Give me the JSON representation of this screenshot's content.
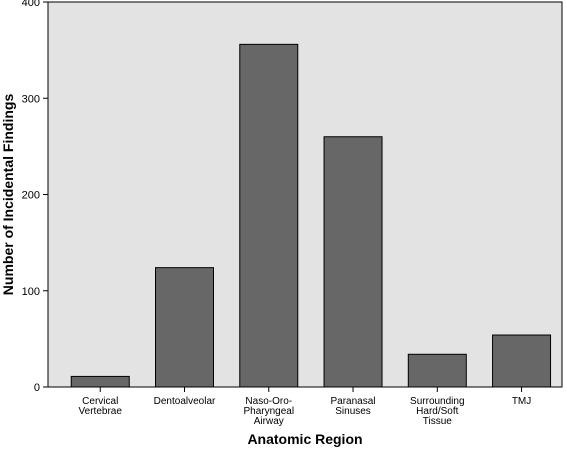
{
  "chart_data": {
    "type": "bar",
    "title": "",
    "xlabel": "Anatomic Region",
    "ylabel": "Number of Incidental Findings",
    "categories": [
      [
        "Cervical",
        "Vertebrae"
      ],
      [
        "Dentoalveolar"
      ],
      [
        "Naso-Oro-",
        "Pharyngeal",
        "Airway"
      ],
      [
        "Paranasal",
        "Sinuses"
      ],
      [
        "Surrounding",
        "Hard/Soft",
        "Tissue"
      ],
      [
        "TMJ"
      ]
    ],
    "values": [
      11,
      124,
      356,
      260,
      34,
      54
    ],
    "ylim": [
      0,
      400
    ],
    "yticks": [
      0,
      100,
      200,
      300,
      400
    ],
    "grid": false,
    "legend": "none"
  },
  "colors": {
    "plot_background": "#e3e3e3",
    "bar_fill": "#676767",
    "bar_stroke": "#000000",
    "axis": "#000000"
  }
}
